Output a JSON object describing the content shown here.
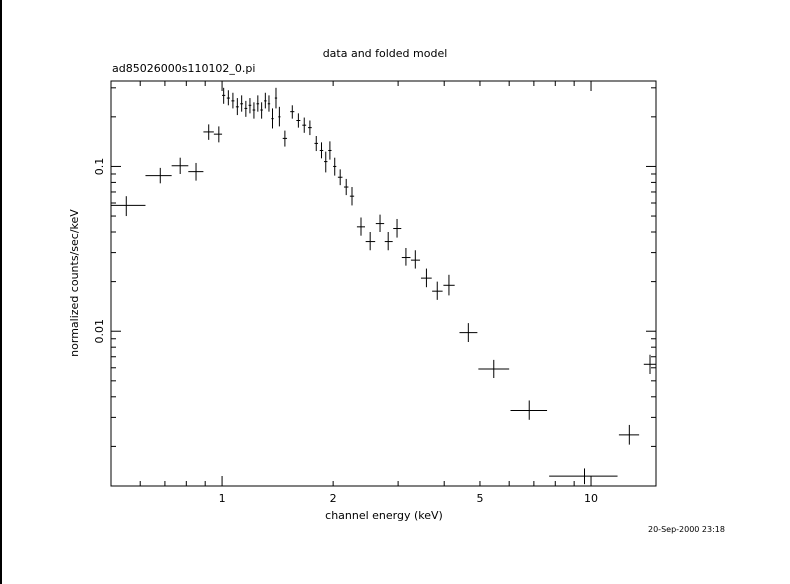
{
  "chart_data": {
    "type": "scatter",
    "title": "data and folded model",
    "subtitle": "ad85026000s110102_0.pi",
    "xlabel": "channel energy (keV)",
    "ylabel": "normalized counts/sec/keV",
    "x_scale": "log",
    "y_scale": "log",
    "xlim": [
      0.5,
      15
    ],
    "ylim": [
      0.00115,
      0.33
    ],
    "x_tick_labels": [
      "1",
      "2",
      "5",
      "10"
    ],
    "y_tick_labels": [
      "0.01",
      "0.1"
    ],
    "grid": false,
    "legend": "none",
    "timestamp": "20-Sep-2000 23:18",
    "series": [
      {
        "points": [
          {
            "x": 0.55,
            "y": 0.058,
            "xlo": 0.5,
            "xhi": 0.62,
            "ylo": 0.05,
            "yhi": 0.066
          },
          {
            "x": 0.68,
            "y": 0.088,
            "xlo": 0.62,
            "xhi": 0.73,
            "ylo": 0.079,
            "yhi": 0.098
          },
          {
            "x": 0.77,
            "y": 0.101,
            "xlo": 0.73,
            "xhi": 0.81,
            "ylo": 0.09,
            "yhi": 0.113
          },
          {
            "x": 0.85,
            "y": 0.093,
            "xlo": 0.81,
            "xhi": 0.89,
            "ylo": 0.082,
            "yhi": 0.105
          },
          {
            "x": 0.92,
            "y": 0.162,
            "xlo": 0.89,
            "xhi": 0.95,
            "ylo": 0.145,
            "yhi": 0.18
          },
          {
            "x": 0.98,
            "y": 0.157,
            "xlo": 0.95,
            "xhi": 1.0,
            "ylo": 0.14,
            "yhi": 0.175
          },
          {
            "x": 1.01,
            "y": 0.27,
            "xlo": 1.0,
            "xhi": 1.02,
            "ylo": 0.24,
            "yhi": 0.3
          },
          {
            "x": 1.04,
            "y": 0.26,
            "xlo": 1.03,
            "xhi": 1.05,
            "ylo": 0.235,
            "yhi": 0.29
          },
          {
            "x": 1.07,
            "y": 0.25,
            "xlo": 1.06,
            "xhi": 1.08,
            "ylo": 0.225,
            "yhi": 0.28
          },
          {
            "x": 1.1,
            "y": 0.23,
            "xlo": 1.09,
            "xhi": 1.11,
            "ylo": 0.205,
            "yhi": 0.26
          },
          {
            "x": 1.13,
            "y": 0.24,
            "xlo": 1.12,
            "xhi": 1.14,
            "ylo": 0.215,
            "yhi": 0.27
          },
          {
            "x": 1.16,
            "y": 0.225,
            "xlo": 1.15,
            "xhi": 1.17,
            "ylo": 0.2,
            "yhi": 0.25
          },
          {
            "x": 1.19,
            "y": 0.235,
            "xlo": 1.18,
            "xhi": 1.2,
            "ylo": 0.21,
            "yhi": 0.26
          },
          {
            "x": 1.22,
            "y": 0.22,
            "xlo": 1.21,
            "xhi": 1.23,
            "ylo": 0.195,
            "yhi": 0.245
          },
          {
            "x": 1.25,
            "y": 0.24,
            "xlo": 1.24,
            "xhi": 1.26,
            "ylo": 0.215,
            "yhi": 0.27
          },
          {
            "x": 1.28,
            "y": 0.22,
            "xlo": 1.27,
            "xhi": 1.29,
            "ylo": 0.195,
            "yhi": 0.245
          },
          {
            "x": 1.31,
            "y": 0.25,
            "xlo": 1.3,
            "xhi": 1.32,
            "ylo": 0.225,
            "yhi": 0.28
          },
          {
            "x": 1.34,
            "y": 0.24,
            "xlo": 1.33,
            "xhi": 1.35,
            "ylo": 0.215,
            "yhi": 0.27
          },
          {
            "x": 1.37,
            "y": 0.195,
            "xlo": 1.36,
            "xhi": 1.38,
            "ylo": 0.17,
            "yhi": 0.225
          },
          {
            "x": 1.4,
            "y": 0.26,
            "xlo": 1.39,
            "xhi": 1.41,
            "ylo": 0.225,
            "yhi": 0.3
          },
          {
            "x": 1.43,
            "y": 0.2,
            "xlo": 1.42,
            "xhi": 1.44,
            "ylo": 0.175,
            "yhi": 0.23
          },
          {
            "x": 1.48,
            "y": 0.148,
            "xlo": 1.46,
            "xhi": 1.5,
            "ylo": 0.132,
            "yhi": 0.165
          },
          {
            "x": 1.55,
            "y": 0.215,
            "xlo": 1.53,
            "xhi": 1.57,
            "ylo": 0.195,
            "yhi": 0.235
          },
          {
            "x": 1.61,
            "y": 0.19,
            "xlo": 1.59,
            "xhi": 1.63,
            "ylo": 0.172,
            "yhi": 0.21
          },
          {
            "x": 1.67,
            "y": 0.178,
            "xlo": 1.65,
            "xhi": 1.69,
            "ylo": 0.16,
            "yhi": 0.198
          },
          {
            "x": 1.73,
            "y": 0.172,
            "xlo": 1.71,
            "xhi": 1.75,
            "ylo": 0.155,
            "yhi": 0.19
          },
          {
            "x": 1.8,
            "y": 0.138,
            "xlo": 1.78,
            "xhi": 1.82,
            "ylo": 0.124,
            "yhi": 0.153
          },
          {
            "x": 1.86,
            "y": 0.125,
            "xlo": 1.84,
            "xhi": 1.88,
            "ylo": 0.112,
            "yhi": 0.14
          },
          {
            "x": 1.91,
            "y": 0.107,
            "xlo": 1.89,
            "xhi": 1.93,
            "ylo": 0.092,
            "yhi": 0.123
          },
          {
            "x": 1.96,
            "y": 0.125,
            "xlo": 1.94,
            "xhi": 1.98,
            "ylo": 0.11,
            "yhi": 0.142
          },
          {
            "x": 2.02,
            "y": 0.1,
            "xlo": 2.0,
            "xhi": 2.04,
            "ylo": 0.088,
            "yhi": 0.113
          },
          {
            "x": 2.09,
            "y": 0.086,
            "xlo": 2.06,
            "xhi": 2.12,
            "ylo": 0.077,
            "yhi": 0.096
          },
          {
            "x": 2.17,
            "y": 0.075,
            "xlo": 2.14,
            "xhi": 2.2,
            "ylo": 0.067,
            "yhi": 0.084
          },
          {
            "x": 2.25,
            "y": 0.066,
            "xlo": 2.22,
            "xhi": 2.28,
            "ylo": 0.058,
            "yhi": 0.075
          },
          {
            "x": 2.38,
            "y": 0.043,
            "xlo": 2.32,
            "xhi": 2.44,
            "ylo": 0.038,
            "yhi": 0.049
          },
          {
            "x": 2.52,
            "y": 0.035,
            "xlo": 2.45,
            "xhi": 2.6,
            "ylo": 0.031,
            "yhi": 0.04
          },
          {
            "x": 2.68,
            "y": 0.045,
            "xlo": 2.61,
            "xhi": 2.75,
            "ylo": 0.04,
            "yhi": 0.051
          },
          {
            "x": 2.82,
            "y": 0.035,
            "xlo": 2.76,
            "xhi": 2.9,
            "ylo": 0.031,
            "yhi": 0.04
          },
          {
            "x": 2.98,
            "y": 0.042,
            "xlo": 2.91,
            "xhi": 3.06,
            "ylo": 0.037,
            "yhi": 0.048
          },
          {
            "x": 3.15,
            "y": 0.028,
            "xlo": 3.07,
            "xhi": 3.24,
            "ylo": 0.025,
            "yhi": 0.032
          },
          {
            "x": 3.34,
            "y": 0.027,
            "xlo": 3.25,
            "xhi": 3.44,
            "ylo": 0.024,
            "yhi": 0.031
          },
          {
            "x": 3.58,
            "y": 0.021,
            "xlo": 3.46,
            "xhi": 3.7,
            "ylo": 0.0185,
            "yhi": 0.024
          },
          {
            "x": 3.83,
            "y": 0.0175,
            "xlo": 3.71,
            "xhi": 3.96,
            "ylo": 0.0155,
            "yhi": 0.02
          },
          {
            "x": 4.12,
            "y": 0.019,
            "xlo": 3.98,
            "xhi": 4.27,
            "ylo": 0.0165,
            "yhi": 0.022
          },
          {
            "x": 4.65,
            "y": 0.0098,
            "xlo": 4.4,
            "xhi": 4.92,
            "ylo": 0.0086,
            "yhi": 0.0112
          },
          {
            "x": 5.45,
            "y": 0.0059,
            "xlo": 4.95,
            "xhi": 6.0,
            "ylo": 0.0052,
            "yhi": 0.0067
          },
          {
            "x": 6.8,
            "y": 0.0033,
            "xlo": 6.05,
            "xhi": 7.6,
            "ylo": 0.0029,
            "yhi": 0.0038
          },
          {
            "x": 9.6,
            "y": 0.00132,
            "xlo": 7.7,
            "xhi": 11.8,
            "ylo": 0.00118,
            "yhi": 0.00147
          },
          {
            "x": 12.7,
            "y": 0.00235,
            "xlo": 11.9,
            "xhi": 13.5,
            "ylo": 0.00205,
            "yhi": 0.0027
          },
          {
            "x": 14.45,
            "y": 0.0063,
            "xlo": 13.9,
            "xhi": 15.0,
            "ylo": 0.0055,
            "yhi": 0.0072
          }
        ]
      }
    ]
  }
}
